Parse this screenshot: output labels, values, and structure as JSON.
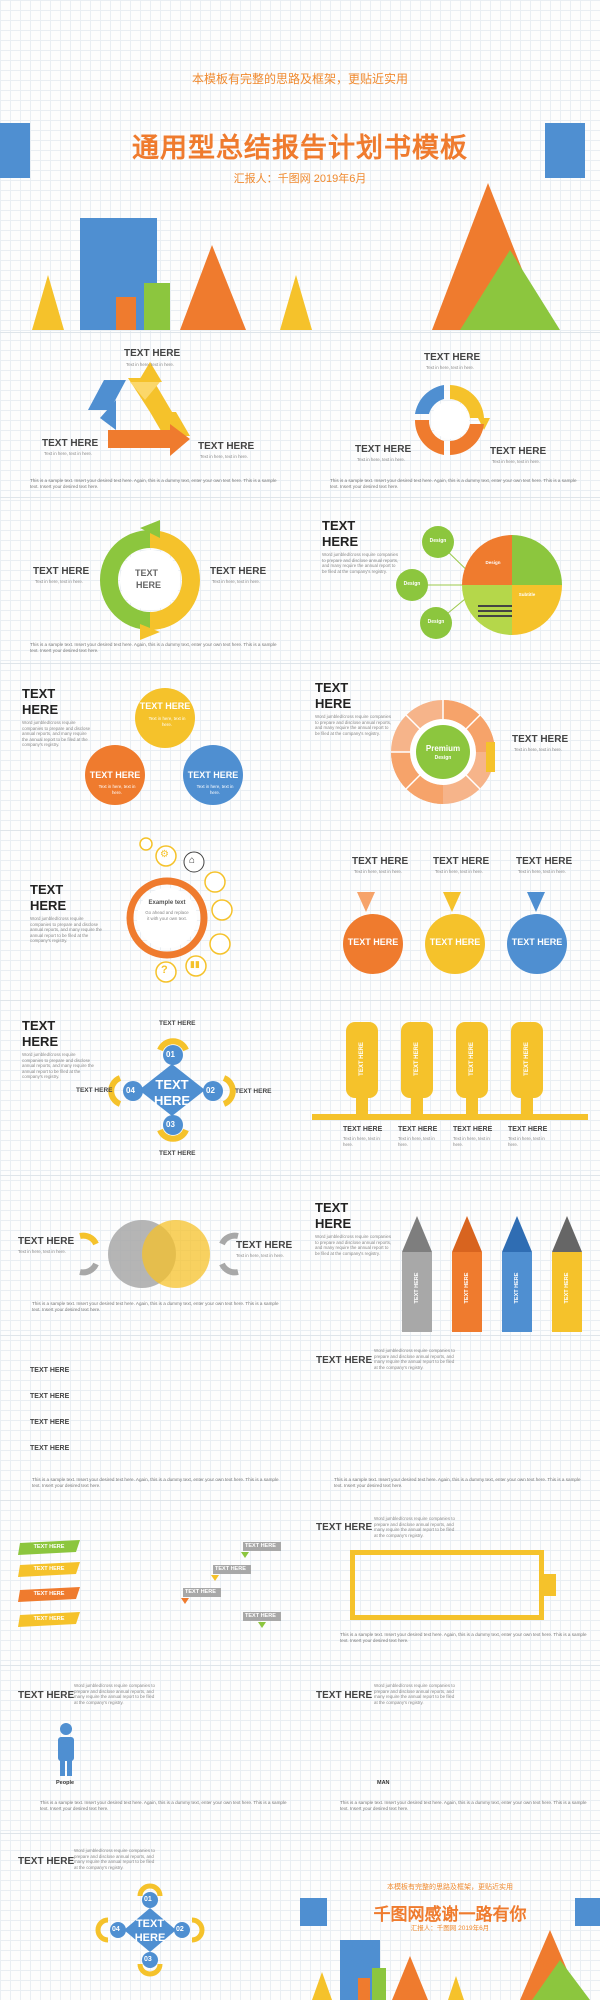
{
  "cover": {
    "subtitle": "本模板有完整的思路及框架，更贴近实用",
    "title": "通用型总结报告计划书模板",
    "reporter": "汇报人：千图网  2019年6月"
  },
  "common": {
    "text_here": "TEXT HERE",
    "text_label": "TEXT",
    "here_label": "HERE",
    "sample_line": "This is a sample text. Insert your desired text here. Again, this is a dummy text, enter your own text here. This is a sample text. Insert your desired text here.",
    "small_line": "Text in here, text in here.",
    "para": "Word jumbled/cross require companies to prepare and disclose annual reports, and many require the annual report to be filed at the company's registry."
  },
  "slide5": {
    "example_text": "Example text",
    "example_body": "Go ahead and replace it with your own text."
  },
  "slide3": {
    "design": "Design",
    "sub": "Subtitle"
  },
  "slide4": {
    "premium": "Premium",
    "premium_sub": "Design"
  },
  "slide6": {
    "n1": "01",
    "n2": "02",
    "n3": "03",
    "n4": "04"
  },
  "slide10": {
    "people": "People",
    "man": "MAN"
  },
  "ending": {
    "subtitle": "本模板有完整的思路及框架，更贴近实用",
    "title": "千图网感谢一路有你",
    "reporter": "汇报人：千图网  2019年6月"
  },
  "colors": {
    "orange": "#ef7b2e",
    "yellow": "#f5c22b",
    "blue": "#4f8fd1",
    "green": "#8cc63e",
    "grey": "#a8a8a8"
  }
}
